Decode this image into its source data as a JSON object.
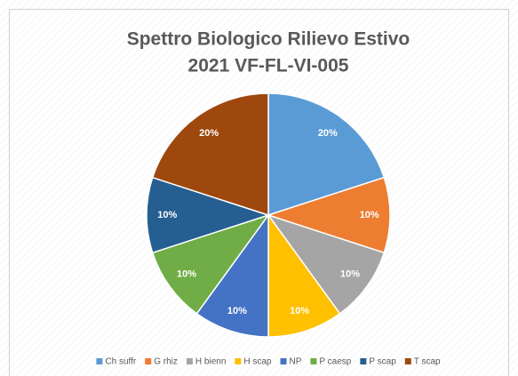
{
  "chart_data": {
    "type": "pie",
    "title_lines": [
      "Spettro Biologico Rilievo Estivo",
      "2021 VF-FL-VI-005"
    ],
    "categories": [
      "Ch suffr",
      "G rhiz",
      "H bienn",
      "H scap",
      "NP",
      "P caesp",
      "P scap",
      "T scap"
    ],
    "values": [
      20,
      10,
      10,
      10,
      10,
      10,
      10,
      20
    ],
    "value_labels": [
      "20%",
      "10%",
      "10%",
      "10%",
      "10%",
      "10%",
      "10%",
      "20%"
    ],
    "colors": [
      "#5b9bd5",
      "#ed7d31",
      "#a5a5a5",
      "#ffc000",
      "#4472c4",
      "#70ad47",
      "#255e91",
      "#9e480e"
    ],
    "legend": "bottom"
  }
}
